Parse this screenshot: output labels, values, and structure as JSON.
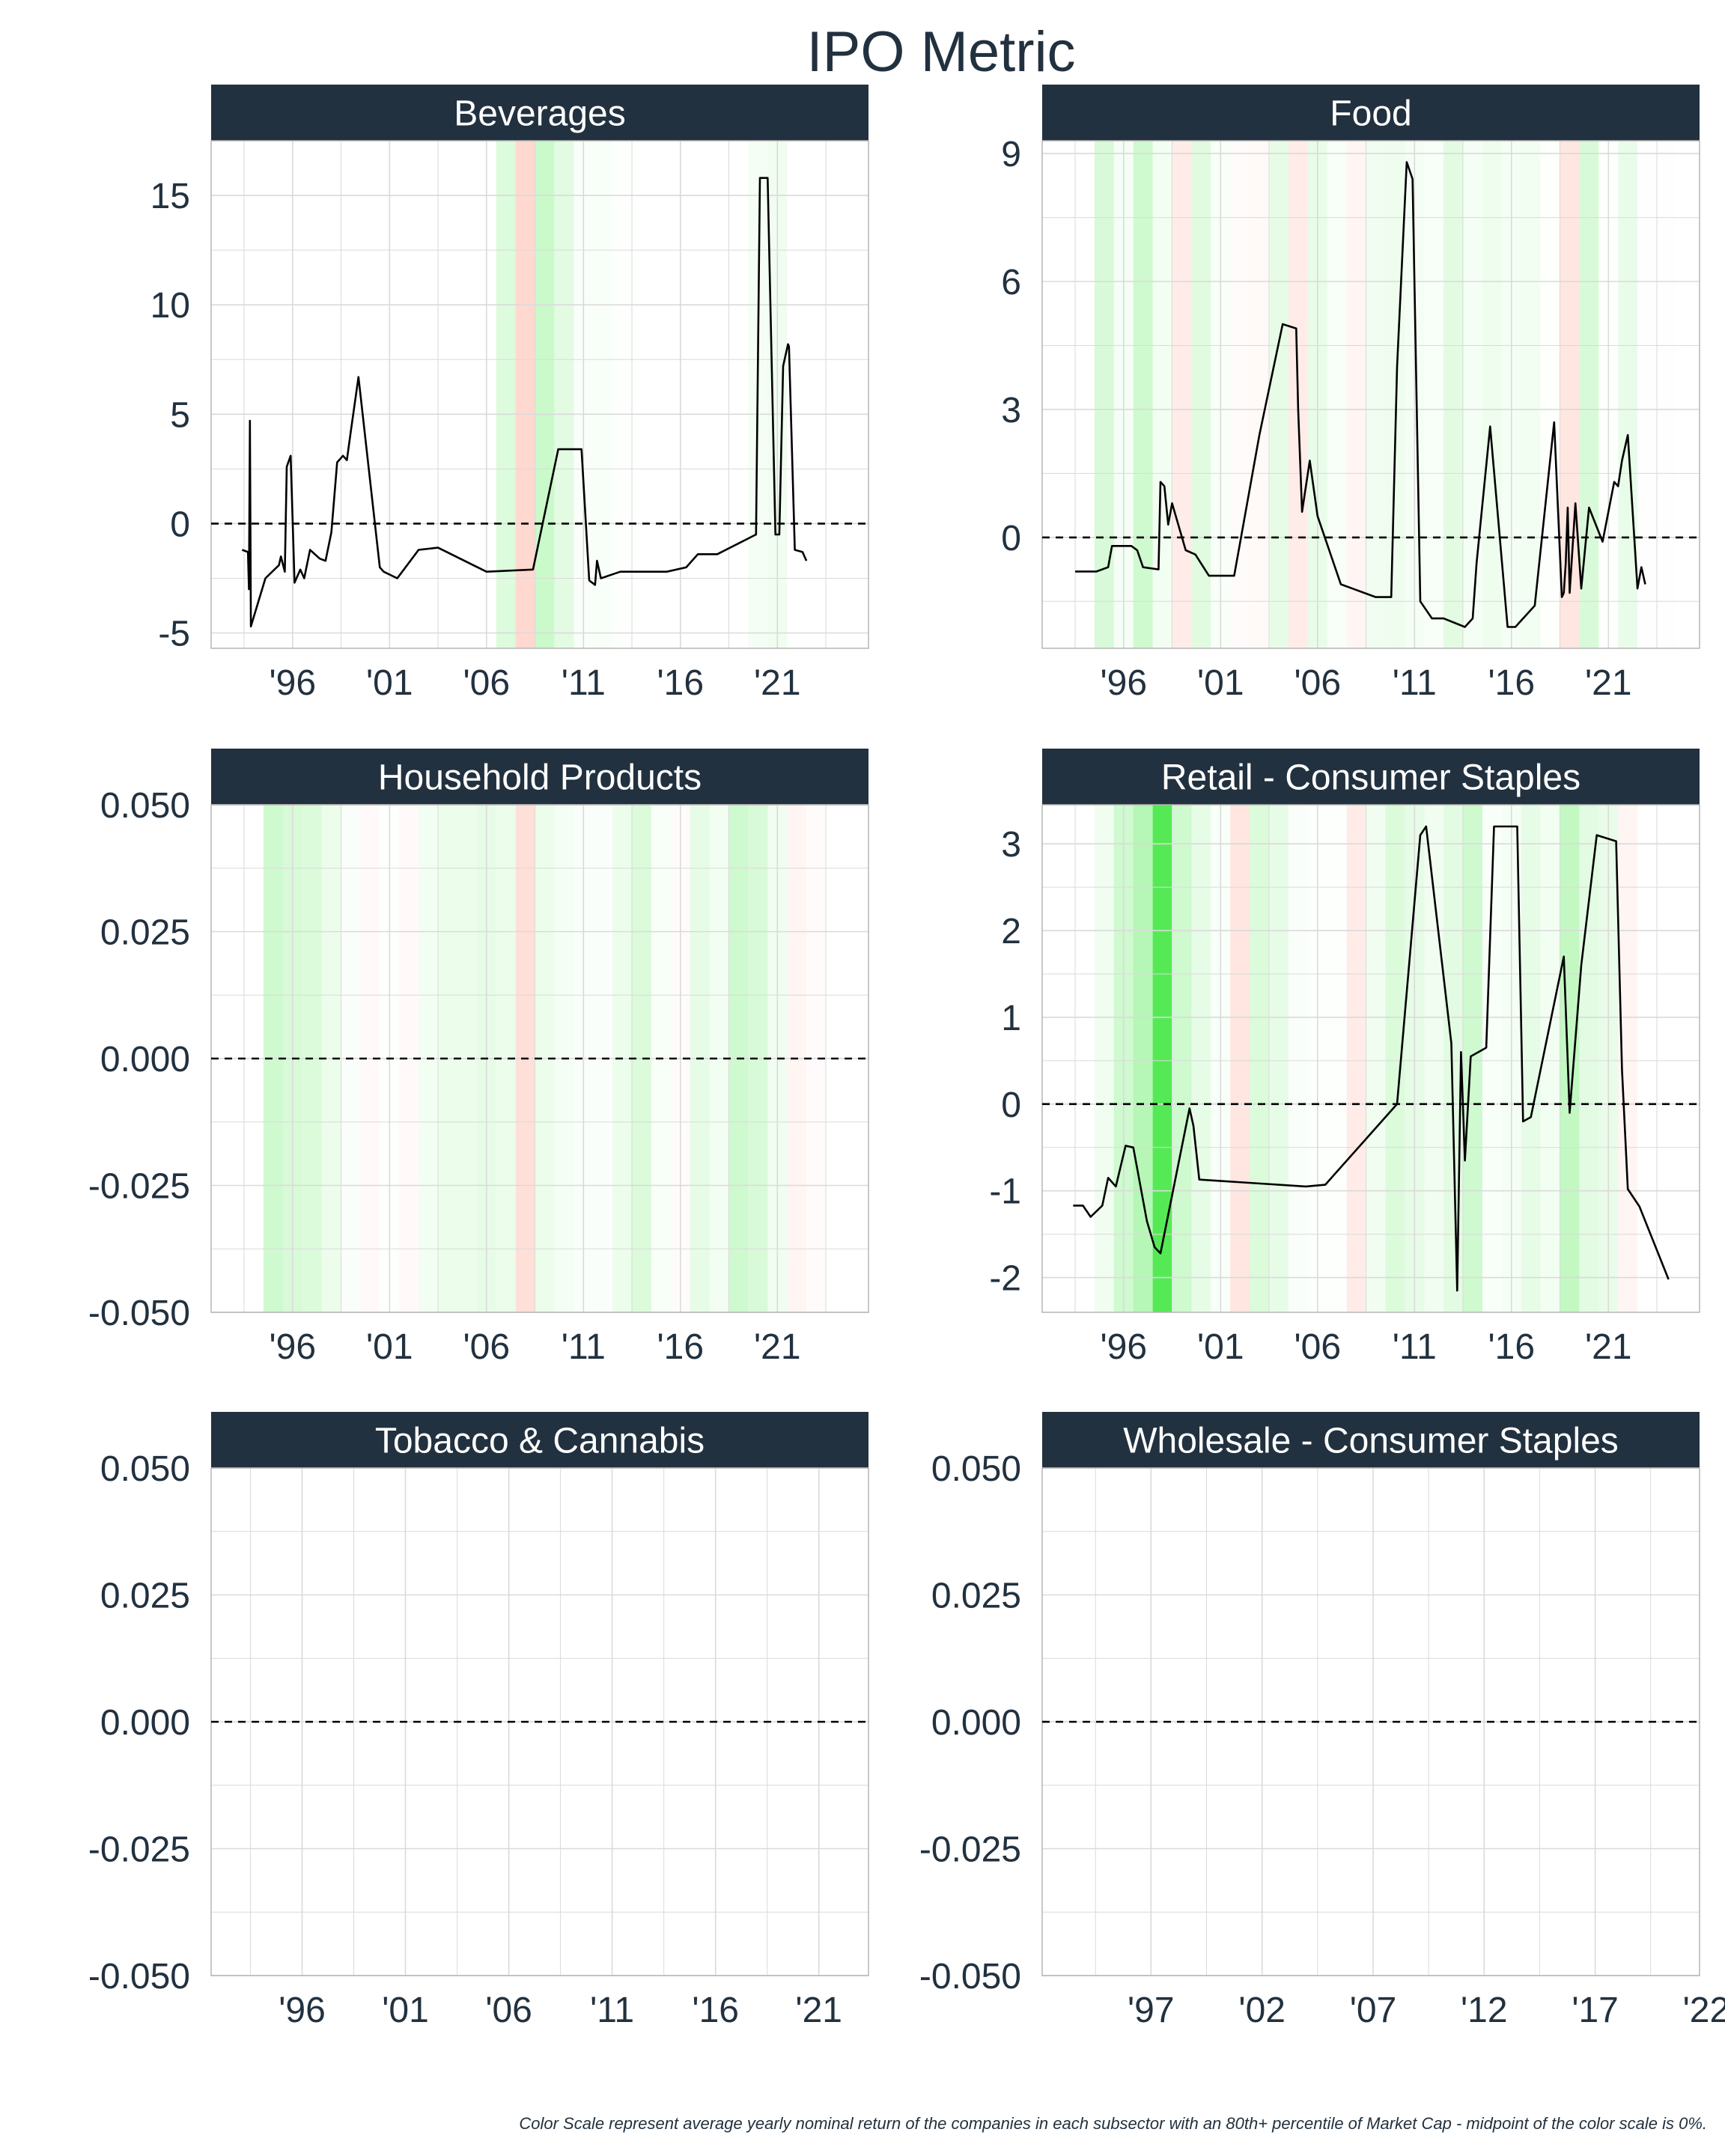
{
  "title": "IPO Metric",
  "caption": "Color Scale represent average yearly nominal return of the companies in each subsector with an 80th+ percentile of Market Cap - midpoint of the color scale is 0%.",
  "colors": {
    "strip": "#22313f",
    "line": "#000000",
    "grid": "#dadada",
    "positive": "#00e000",
    "negative": "#ff7a5c"
  },
  "chart_data": [
    {
      "type": "line",
      "title": "Beverages",
      "xlim": [
        1991.8,
        2025.7
      ],
      "ylim": [
        -5.7,
        17.5
      ],
      "x_ticks": [
        1996,
        2001,
        2006,
        2011,
        2016,
        2021
      ],
      "x_tick_labels": [
        "'96",
        "'01",
        "'06",
        "'11",
        "'16",
        "'21"
      ],
      "y_ticks": [
        -5,
        0,
        5,
        10,
        15
      ],
      "y_tick_labels": [
        "-5",
        "0",
        "5",
        "10",
        "15"
      ],
      "reference_line": 0,
      "bands": [
        {
          "year": 2007,
          "value": 0.14
        },
        {
          "year": 2008,
          "value": -0.3
        },
        {
          "year": 2009,
          "value": 0.22
        },
        {
          "year": 2010,
          "value": 0.12
        },
        {
          "year": 2011,
          "value": 0.02
        },
        {
          "year": 2012,
          "value": 0.03
        },
        {
          "year": 2013,
          "value": 0.01
        },
        {
          "year": 2020,
          "value": 0.04
        },
        {
          "year": 2021,
          "value": 0.06
        }
      ],
      "series": [
        {
          "x": [
            1993.4,
            1993.7,
            1993.75,
            1993.8,
            1993.85,
            1994.6,
            1995.3,
            1995.4,
            1995.6,
            1995.7,
            1995.9,
            1996.1,
            1996.4,
            1996.6,
            1996.9,
            1997.4,
            1997.7,
            1998.0,
            1998.3,
            1998.6,
            1998.8,
            1999.0,
            1999.4,
            2000.5,
            2000.7,
            2001.4,
            2002.5,
            2003.5,
            2006.0,
            2008.4,
            2009.7,
            2010.6,
            2010.9,
            2011.3,
            2011.6,
            2011.7,
            2011.9,
            2012.9,
            2014.0,
            2015.3,
            2016.3,
            2016.9,
            2017.9,
            2019.9,
            2020.1,
            2020.35,
            2020.5,
            2020.9,
            2021.1,
            2021.3,
            2021.55,
            2021.6,
            2021.9,
            2022.3,
            2022.5
          ],
          "y": [
            -1.2,
            -1.3,
            -3.0,
            4.7,
            -4.7,
            -2.5,
            -1.9,
            -1.5,
            -2.2,
            2.6,
            3.1,
            -2.7,
            -2.1,
            -2.5,
            -1.2,
            -1.6,
            -1.7,
            -0.4,
            2.8,
            3.1,
            2.9,
            4.2,
            6.7,
            -2.0,
            -2.2,
            -2.5,
            -1.2,
            -1.1,
            -2.2,
            -2.1,
            3.4,
            3.4,
            3.4,
            -2.6,
            -2.8,
            -1.7,
            -2.5,
            -2.2,
            -2.2,
            -2.2,
            -2.0,
            -1.4,
            -1.4,
            -0.5,
            15.8,
            15.8,
            15.8,
            -0.5,
            -0.5,
            7.2,
            8.2,
            8.1,
            -1.2,
            -1.3,
            -1.7
          ]
        }
      ]
    },
    {
      "type": "line",
      "title": "Food",
      "xlim": [
        1991.8,
        2025.7
      ],
      "ylim": [
        -2.6,
        9.3
      ],
      "x_ticks": [
        1996,
        2001,
        2006,
        2011,
        2016,
        2021
      ],
      "x_tick_labels": [
        "'96",
        "'01",
        "'06",
        "'11",
        "'16",
        "'21"
      ],
      "y_ticks": [
        0,
        3,
        6,
        9
      ],
      "y_tick_labels": [
        "0",
        "3",
        "6",
        "9"
      ],
      "reference_line": 0,
      "bands": [
        {
          "year": 1995,
          "value": 0.16
        },
        {
          "year": 1996,
          "value": 0.04
        },
        {
          "year": 1997,
          "value": 0.2
        },
        {
          "year": 1998,
          "value": 0.05
        },
        {
          "year": 1999,
          "value": -0.15
        },
        {
          "year": 2000,
          "value": 0.13
        },
        {
          "year": 2001,
          "value": 0.03
        },
        {
          "year": 2002,
          "value": -0.03
        },
        {
          "year": 2003,
          "value": -0.05
        },
        {
          "year": 2004,
          "value": 0.1
        },
        {
          "year": 2005,
          "value": -0.15
        },
        {
          "year": 2006,
          "value": 0.09
        },
        {
          "year": 2007,
          "value": 0.03
        },
        {
          "year": 2008,
          "value": -0.08
        },
        {
          "year": 2009,
          "value": 0.06
        },
        {
          "year": 2010,
          "value": 0.07
        },
        {
          "year": 2011,
          "value": 0.04
        },
        {
          "year": 2012,
          "value": 0.03
        },
        {
          "year": 2013,
          "value": 0.12
        },
        {
          "year": 2014,
          "value": 0.04
        },
        {
          "year": 2015,
          "value": 0.07
        },
        {
          "year": 2016,
          "value": 0.04
        },
        {
          "year": 2017,
          "value": 0.05
        },
        {
          "year": 2018,
          "value": 0.01
        },
        {
          "year": 2019,
          "value": -0.2
        },
        {
          "year": 2020,
          "value": 0.16
        },
        {
          "year": 2021,
          "value": 0.01
        },
        {
          "year": 2022,
          "value": 0.09
        },
        {
          "year": 2023,
          "value": -0.01
        },
        {
          "year": 2024,
          "value": -0.01
        }
      ],
      "series": [
        {
          "x": [
            1993.5,
            1994.3,
            1994.6,
            1995.2,
            1995.4,
            1996.4,
            1996.7,
            1997.0,
            1997.8,
            1997.9,
            1998.1,
            1998.3,
            1998.5,
            1999.2,
            1999.7,
            2000.4,
            2001.7,
            2003.0,
            2004.2,
            2004.9,
            2005.0,
            2005.2,
            2005.6,
            2006.0,
            2007.2,
            2007.8,
            2009.0,
            2009.8,
            2010.1,
            2010.6,
            2010.9,
            2011.3,
            2011.9,
            2012.5,
            2013.6,
            2014.0,
            2014.2,
            2014.9,
            2015.8,
            2016.2,
            2017.2,
            2018.2,
            2018.6,
            2018.7,
            2018.8,
            2018.9,
            2019.0,
            2019.3,
            2019.6,
            2020.0,
            2020.7,
            2021.3,
            2021.5,
            2021.7,
            2022.0,
            2022.5,
            2022.7,
            2022.9
          ],
          "y": [
            -0.8,
            -0.8,
            -0.8,
            -0.7,
            -0.2,
            -0.2,
            -0.3,
            -0.7,
            -0.75,
            1.3,
            1.2,
            0.3,
            0.8,
            -0.3,
            -0.4,
            -0.9,
            -0.9,
            2.4,
            5.0,
            4.9,
            3.0,
            0.6,
            1.8,
            0.5,
            -1.1,
            -1.2,
            -1.4,
            -1.4,
            4.0,
            8.8,
            8.4,
            -1.5,
            -1.9,
            -1.9,
            -2.1,
            -1.9,
            -0.6,
            2.6,
            -2.1,
            -2.1,
            -1.6,
            2.7,
            -1.4,
            -1.3,
            -0.6,
            0.7,
            -1.3,
            0.8,
            -1.2,
            0.7,
            -0.1,
            1.3,
            1.2,
            1.8,
            2.4,
            -1.2,
            -0.7,
            -1.1
          ]
        }
      ]
    },
    {
      "type": "line",
      "title": "Household Products",
      "xlim": [
        1991.8,
        2025.7
      ],
      "ylim": [
        -0.05,
        0.05
      ],
      "x_ticks": [
        1996,
        2001,
        2006,
        2011,
        2016,
        2021
      ],
      "x_tick_labels": [
        "'96",
        "'01",
        "'06",
        "'11",
        "'16",
        "'21"
      ],
      "y_ticks": [
        -0.05,
        -0.025,
        0,
        0.025,
        0.05
      ],
      "y_tick_labels": [
        "-0.050",
        "-0.025",
        "0.000",
        "0.025",
        "0.050"
      ],
      "reference_line": 0,
      "bands": [
        {
          "year": 1995,
          "value": 0.2
        },
        {
          "year": 1996,
          "value": 0.16
        },
        {
          "year": 1997,
          "value": 0.15
        },
        {
          "year": 1998,
          "value": 0.08
        },
        {
          "year": 1999,
          "value": 0.02
        },
        {
          "year": 2000,
          "value": -0.04
        },
        {
          "year": 2001,
          "value": 0.01
        },
        {
          "year": 2002,
          "value": -0.04
        },
        {
          "year": 2003,
          "value": 0.05
        },
        {
          "year": 2004,
          "value": 0.08
        },
        {
          "year": 2005,
          "value": 0.08
        },
        {
          "year": 2006,
          "value": 0.1
        },
        {
          "year": 2007,
          "value": 0.08
        },
        {
          "year": 2008,
          "value": -0.25
        },
        {
          "year": 2009,
          "value": 0.08
        },
        {
          "year": 2010,
          "value": 0.04
        },
        {
          "year": 2011,
          "value": 0.02
        },
        {
          "year": 2012,
          "value": 0.02
        },
        {
          "year": 2013,
          "value": 0.08
        },
        {
          "year": 2014,
          "value": 0.15
        },
        {
          "year": 2015,
          "value": 0.03
        },
        {
          "year": 2016,
          "value": -0.03
        },
        {
          "year": 2017,
          "value": 0.1
        },
        {
          "year": 2018,
          "value": 0.05
        },
        {
          "year": 2019,
          "value": 0.2
        },
        {
          "year": 2020,
          "value": 0.16
        },
        {
          "year": 2021,
          "value": 0.06
        },
        {
          "year": 2022,
          "value": -0.08
        },
        {
          "year": 2023,
          "value": -0.03
        }
      ],
      "series": []
    },
    {
      "type": "line",
      "title": "Retail - Consumer Staples",
      "xlim": [
        1991.8,
        2025.7
      ],
      "ylim": [
        -2.4,
        3.45
      ],
      "x_ticks": [
        1996,
        2001,
        2006,
        2011,
        2016,
        2021
      ],
      "x_tick_labels": [
        "'96",
        "'01",
        "'06",
        "'11",
        "'16",
        "'21"
      ],
      "y_ticks": [
        -2,
        -1,
        0,
        1,
        2,
        3
      ],
      "y_tick_labels": [
        "-2",
        "-1",
        "0",
        "1",
        "2",
        "3"
      ],
      "reference_line": 0,
      "bands": [
        {
          "year": 1995,
          "value": 0.06
        },
        {
          "year": 1996,
          "value": 0.2
        },
        {
          "year": 1997,
          "value": 0.3
        },
        {
          "year": 1998,
          "value": 0.7
        },
        {
          "year": 1999,
          "value": 0.2
        },
        {
          "year": 2000,
          "value": 0.1
        },
        {
          "year": 2001,
          "value": 0.03
        },
        {
          "year": 2002,
          "value": -0.2
        },
        {
          "year": 2003,
          "value": 0.15
        },
        {
          "year": 2004,
          "value": 0.1
        },
        {
          "year": 2005,
          "value": 0.02
        },
        {
          "year": 2006,
          "value": 0.01
        },
        {
          "year": 2007,
          "value": 0.01
        },
        {
          "year": 2008,
          "value": -0.15
        },
        {
          "year": 2009,
          "value": 0.06
        },
        {
          "year": 2010,
          "value": 0.15
        },
        {
          "year": 2011,
          "value": 0.1
        },
        {
          "year": 2012,
          "value": 0.06
        },
        {
          "year": 2013,
          "value": 0.12
        },
        {
          "year": 2014,
          "value": 0.2
        },
        {
          "year": 2015,
          "value": 0.03
        },
        {
          "year": 2016,
          "value": 0.04
        },
        {
          "year": 2017,
          "value": 0.1
        },
        {
          "year": 2018,
          "value": 0.05
        },
        {
          "year": 2019,
          "value": 0.25
        },
        {
          "year": 2020,
          "value": 0.12
        },
        {
          "year": 2021,
          "value": 0.09
        },
        {
          "year": 2022,
          "value": -0.08
        }
      ],
      "series": [
        {
          "x": [
            1993.4,
            1993.9,
            1994.3,
            1994.9,
            1995.2,
            1995.6,
            1996.1,
            1996.5,
            1997.2,
            1997.6,
            1997.9,
            1999.4,
            1999.6,
            1999.9,
            2005.4,
            2006.4,
            2010.1,
            2011.3,
            2011.6,
            2012.9,
            2013.2,
            2013.4,
            2013.6,
            2013.9,
            2014.7,
            2015.1,
            2015.4,
            2016.3,
            2016.6,
            2017.0,
            2018.7,
            2019.0,
            2019.6,
            2020.4,
            2021.4,
            2021.7,
            2022.0,
            2022.6,
            2024.1
          ],
          "y": [
            -1.17,
            -1.17,
            -1.3,
            -1.17,
            -0.85,
            -0.95,
            -0.48,
            -0.5,
            -1.35,
            -1.65,
            -1.72,
            -0.05,
            -0.25,
            -0.87,
            -0.95,
            -0.93,
            0.0,
            3.1,
            3.2,
            0.7,
            -2.15,
            0.6,
            -0.65,
            0.55,
            0.65,
            3.2,
            3.2,
            3.2,
            -0.2,
            -0.15,
            1.7,
            -0.1,
            1.6,
            3.1,
            3.03,
            0.4,
            -0.98,
            -1.18,
            -2.02
          ]
        }
      ]
    },
    {
      "type": "line",
      "title": "Tobacco & Cannabis",
      "xlim": [
        1991.6,
        2023.4
      ],
      "ylim": [
        -0.05,
        0.05
      ],
      "x_ticks": [
        1996,
        2001,
        2006,
        2011,
        2016,
        2021
      ],
      "x_tick_labels": [
        "'96",
        "'01",
        "'06",
        "'11",
        "'16",
        "'21"
      ],
      "y_ticks": [
        -0.05,
        -0.025,
        0,
        0.025,
        0.05
      ],
      "y_tick_labels": [
        "-0.050",
        "-0.025",
        "0.000",
        "0.025",
        "0.050"
      ],
      "reference_line": 0,
      "bands": [],
      "series": []
    },
    {
      "type": "line",
      "title": "Wholesale - Consumer Staples",
      "xlim": [
        1992.1,
        2021.7
      ],
      "ylim": [
        -0.05,
        0.05
      ],
      "x_ticks": [
        1997,
        2002,
        2007,
        2012,
        2017,
        2022
      ],
      "x_tick_labels": [
        "'97",
        "'02",
        "'07",
        "'12",
        "'17",
        "'22"
      ],
      "y_ticks": [
        -0.05,
        -0.025,
        0,
        0.025,
        0.05
      ],
      "y_tick_labels": [
        "-0.050",
        "-0.025",
        "0.000",
        "0.025",
        "0.050"
      ],
      "reference_line": 0,
      "bands": [],
      "series": []
    }
  ]
}
